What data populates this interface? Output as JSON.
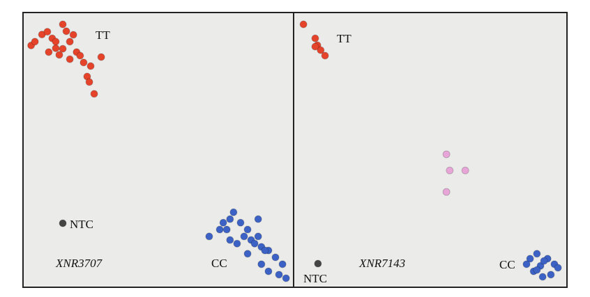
{
  "chart_data": [
    {
      "type": "scatter",
      "label": "XNR3707",
      "xlim": [
        0,
        100
      ],
      "ylim": [
        0,
        100
      ],
      "series": [
        {
          "name": "TT",
          "color": "#e5442b",
          "x": [
            3,
            4.4,
            7,
            9,
            10.8,
            12.1,
            14.7,
            16,
            17.3,
            19.8,
            22.4,
            25,
            23.7,
            26.3,
            13.4,
            9.5,
            17.3,
            21.1,
            28.9,
            18.6,
            12.1,
            14.7,
            24.5
          ],
          "y": [
            88,
            89.4,
            92,
            93,
            90.6,
            87,
            95.7,
            93.2,
            89.4,
            85.6,
            81.8,
            80.5,
            76.7,
            70.4,
            84.6,
            85.6,
            83,
            84.3,
            83.8,
            91.9,
            89.4,
            86.8,
            74.7
          ]
        },
        {
          "name": "CC",
          "color": "#3b62c4",
          "x": [
            68.8,
            72.7,
            74,
            76.5,
            77.8,
            80.4,
            83,
            84.3,
            86.9,
            88.1,
            90.7,
            93.3,
            95.9,
            97.2,
            94.6,
            90.7,
            88.1,
            83,
            79.1,
            76.5,
            86.9,
            81.7,
            85.6,
            89.4,
            75.3
          ],
          "y": [
            18.5,
            21,
            23.5,
            24.8,
            27.3,
            23.5,
            21,
            17.2,
            18.5,
            14.7,
            13.4,
            10.9,
            8.4,
            3.3,
            4.6,
            5.8,
            8.4,
            12.2,
            15.9,
            17.2,
            24.8,
            18.5,
            15.9,
            13.4,
            21
          ]
        },
        {
          "name": "NTC",
          "color": "#444444",
          "x": [
            14.7
          ],
          "y": [
            23.3
          ]
        }
      ]
    },
    {
      "type": "scatter",
      "label": "XNR7143",
      "xlim": [
        0,
        100
      ],
      "ylim": [
        0,
        100
      ],
      "series": [
        {
          "name": "TT",
          "color": "#e5442b",
          "x": [
            3.6,
            7.9,
            8.7,
            9.9,
            11.5,
            7.9
          ],
          "y": [
            95.7,
            90.6,
            88.1,
            86.3,
            84.3,
            87.6
          ]
        },
        {
          "color": "#e8a6d8",
          "x": [
            55.9,
            57.1,
            62.8,
            55.9
          ],
          "y": [
            48.4,
            42.5,
            42.5,
            34.7
          ]
        },
        {
          "name": "CC",
          "color": "#3b62c4",
          "x": [
            86.5,
            89,
            92.9,
            95.4,
            96.7,
            94.1,
            91.1,
            87.8,
            85.2,
            90.3,
            91.6,
            89
          ],
          "y": [
            10.4,
            12.2,
            10.4,
            8.4,
            7.1,
            4.6,
            3.8,
            5.8,
            8.4,
            7.8,
            9.6,
            6.3
          ]
        },
        {
          "name": "NTC",
          "color": "#444444",
          "x": [
            8.9
          ],
          "y": [
            8.6
          ]
        }
      ]
    }
  ]
}
